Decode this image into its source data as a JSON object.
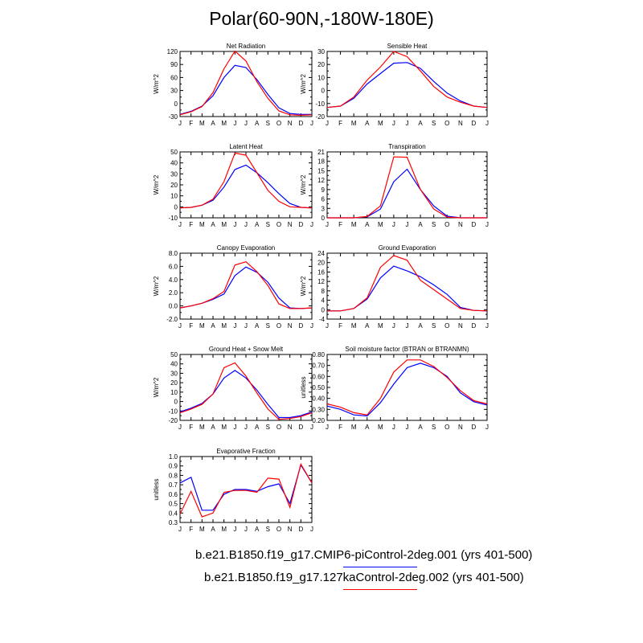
{
  "title": "Polar(60-90N,-180W-180E)",
  "colors": {
    "series1": "#0000ff",
    "series2": "#ff0000",
    "axis": "#000000"
  },
  "legend": [
    {
      "label": "b.e21.B1850.f19_g17.CMIP6-piControl-2deg.001 (yrs 401-500)",
      "color": "#0000ff"
    },
    {
      "label": "b.e21.B1850.f19_g17.127kaControl-2deg.002 (yrs 401-500)",
      "color": "#ff0000"
    }
  ],
  "chart_data": [
    {
      "type": "line",
      "title": "Net Radiation",
      "ylabel": "W/m^2",
      "x": [
        "J",
        "F",
        "M",
        "A",
        "M",
        "J",
        "J",
        "A",
        "S",
        "O",
        "N",
        "D",
        "J"
      ],
      "ylim": [
        -30,
        120
      ],
      "yticks": [
        "120",
        "90",
        "60",
        "30",
        "0",
        "-30"
      ],
      "series": [
        {
          "values": [
            -25,
            -18,
            -6,
            18,
            60,
            88,
            83,
            55,
            21,
            -10,
            -23,
            -25,
            -25
          ]
        },
        {
          "values": [
            -26,
            -19,
            -7,
            25,
            80,
            121,
            98,
            50,
            12,
            -17,
            -26,
            -27,
            -26
          ]
        }
      ]
    },
    {
      "type": "line",
      "title": "Sensible Heat",
      "ylabel": "W/m^2",
      "x": [
        "J",
        "F",
        "M",
        "A",
        "M",
        "J",
        "J",
        "A",
        "S",
        "O",
        "N",
        "D",
        "J"
      ],
      "ylim": [
        -20,
        30
      ],
      "yticks": [
        "30",
        "20",
        "10",
        "0",
        "-10",
        "-20"
      ],
      "series": [
        {
          "values": [
            -13,
            -12,
            -6,
            5,
            13,
            21,
            21.5,
            17,
            7,
            -2,
            -8,
            -12,
            -13
          ]
        },
        {
          "values": [
            -13,
            -12,
            -5,
            8,
            18,
            30,
            26,
            15,
            3,
            -5,
            -9,
            -12,
            -13
          ]
        }
      ]
    },
    {
      "type": "line",
      "title": "Latent Heat",
      "ylabel": "W/m^2",
      "x": [
        "J",
        "F",
        "M",
        "A",
        "M",
        "J",
        "J",
        "A",
        "S",
        "O",
        "N",
        "D",
        "J"
      ],
      "ylim": [
        -10,
        50
      ],
      "yticks": [
        "50",
        "40",
        "30",
        "20",
        "10",
        "0",
        "-10"
      ],
      "series": [
        {
          "values": [
            -1,
            -0.5,
            1.5,
            6,
            18,
            34,
            38,
            31,
            22,
            12,
            3,
            -0.5,
            -1
          ]
        },
        {
          "values": [
            -1,
            -0.5,
            1.5,
            7,
            23,
            49,
            47,
            31,
            15,
            5,
            0,
            -0.5,
            -1
          ]
        }
      ]
    },
    {
      "type": "line",
      "title": "Transpiration",
      "ylabel": "W/m^2",
      "x": [
        "J",
        "F",
        "M",
        "A",
        "M",
        "J",
        "J",
        "A",
        "S",
        "O",
        "N",
        "D",
        "J"
      ],
      "ylim": [
        0,
        21
      ],
      "yticks": [
        "21",
        "18",
        "15",
        "12",
        "9",
        "6",
        "3",
        "0"
      ],
      "series": [
        {
          "values": [
            0,
            0,
            0,
            0.3,
            2.8,
            11.5,
            15.5,
            9,
            3.8,
            0.5,
            0,
            0,
            0
          ]
        },
        {
          "values": [
            0,
            0,
            0,
            0.4,
            3.8,
            19.4,
            19.3,
            9,
            2.8,
            0.2,
            0,
            0,
            0
          ]
        }
      ]
    },
    {
      "type": "line",
      "title": "Canopy Evaporation",
      "ylabel": "W/m^2",
      "x": [
        "J",
        "F",
        "M",
        "A",
        "M",
        "J",
        "J",
        "A",
        "S",
        "O",
        "N",
        "D",
        "J"
      ],
      "ylim": [
        -2,
        8
      ],
      "yticks": [
        "8.0",
        "6.0",
        "4.0",
        "2.0",
        "0.0",
        "-2.0"
      ],
      "series": [
        {
          "values": [
            -0.3,
            0,
            0.4,
            1,
            1.8,
            4.6,
            5.9,
            5.1,
            3.6,
            1.2,
            -0.3,
            -0.4,
            -0.3
          ]
        },
        {
          "values": [
            -0.3,
            0,
            0.4,
            1.1,
            2.2,
            6.2,
            6.7,
            5.2,
            3.1,
            0.3,
            -0.4,
            -0.4,
            -0.3
          ]
        }
      ]
    },
    {
      "type": "line",
      "title": "Ground Evaporation",
      "ylabel": "W/m^2",
      "x": [
        "J",
        "F",
        "M",
        "A",
        "M",
        "J",
        "J",
        "A",
        "S",
        "O",
        "N",
        "D",
        "J"
      ],
      "ylim": [
        -4,
        24
      ],
      "yticks": [
        "24",
        "20",
        "16",
        "12",
        "8",
        "4",
        "0",
        "-4"
      ],
      "series": [
        {
          "values": [
            -0.5,
            -0.5,
            0.5,
            4.5,
            13.5,
            18.5,
            16.5,
            14,
            10.5,
            6.5,
            1,
            -0.3,
            -0.5
          ]
        },
        {
          "values": [
            -0.5,
            -0.5,
            0.5,
            5,
            18,
            23,
            21,
            12.5,
            8.5,
            4.5,
            0.5,
            -0.3,
            -0.5
          ]
        }
      ]
    },
    {
      "type": "line",
      "title": "Ground Heat + Snow Melt",
      "ylabel": "W/m^2",
      "x": [
        "J",
        "F",
        "M",
        "A",
        "M",
        "J",
        "J",
        "A",
        "S",
        "O",
        "N",
        "D",
        "J"
      ],
      "ylim": [
        -20,
        50
      ],
      "yticks": [
        "50",
        "40",
        "30",
        "20",
        "10",
        "0",
        "-10",
        "-20"
      ],
      "series": [
        {
          "values": [
            -11,
            -7,
            -2,
            8,
            25,
            33,
            25,
            12,
            -3,
            -17,
            -17,
            -15,
            -11
          ]
        },
        {
          "values": [
            -12,
            -8,
            -3,
            8,
            36,
            41,
            27,
            9,
            -8,
            -19,
            -18,
            -16,
            -12
          ]
        }
      ]
    },
    {
      "type": "line",
      "title": "Soil moisture factor (BTRAN or BTRANMN)",
      "ylabel": "unitless",
      "x": [
        "J",
        "F",
        "M",
        "A",
        "M",
        "J",
        "J",
        "A",
        "S",
        "O",
        "N",
        "D",
        "J"
      ],
      "ylim": [
        0.2,
        0.8
      ],
      "yticks": [
        "0.80",
        "0.70",
        "0.60",
        "0.50",
        "0.40",
        "0.30",
        "0.20"
      ],
      "series": [
        {
          "values": [
            0.33,
            0.3,
            0.25,
            0.24,
            0.36,
            0.53,
            0.68,
            0.72,
            0.68,
            0.6,
            0.45,
            0.37,
            0.34
          ]
        },
        {
          "values": [
            0.35,
            0.32,
            0.27,
            0.25,
            0.4,
            0.64,
            0.75,
            0.75,
            0.69,
            0.59,
            0.47,
            0.38,
            0.35
          ]
        }
      ]
    },
    {
      "type": "line",
      "title": "Evaporative Fraction",
      "ylabel": "unitless",
      "x": [
        "J",
        "F",
        "M",
        "A",
        "M",
        "J",
        "J",
        "A",
        "S",
        "O",
        "N",
        "D",
        "J"
      ],
      "ylim": [
        0.3,
        1.0
      ],
      "yticks": [
        "1.0",
        "0.9",
        "0.8",
        "0.7",
        "0.6",
        "0.5",
        "0.4",
        "0.3"
      ],
      "series": [
        {
          "values": [
            0.72,
            0.78,
            0.43,
            0.43,
            0.6,
            0.65,
            0.65,
            0.63,
            0.68,
            0.71,
            0.5,
            0.91,
            0.72
          ]
        },
        {
          "values": [
            0.39,
            0.63,
            0.36,
            0.4,
            0.62,
            0.64,
            0.64,
            0.62,
            0.77,
            0.76,
            0.46,
            0.92,
            0.72
          ]
        }
      ]
    }
  ]
}
